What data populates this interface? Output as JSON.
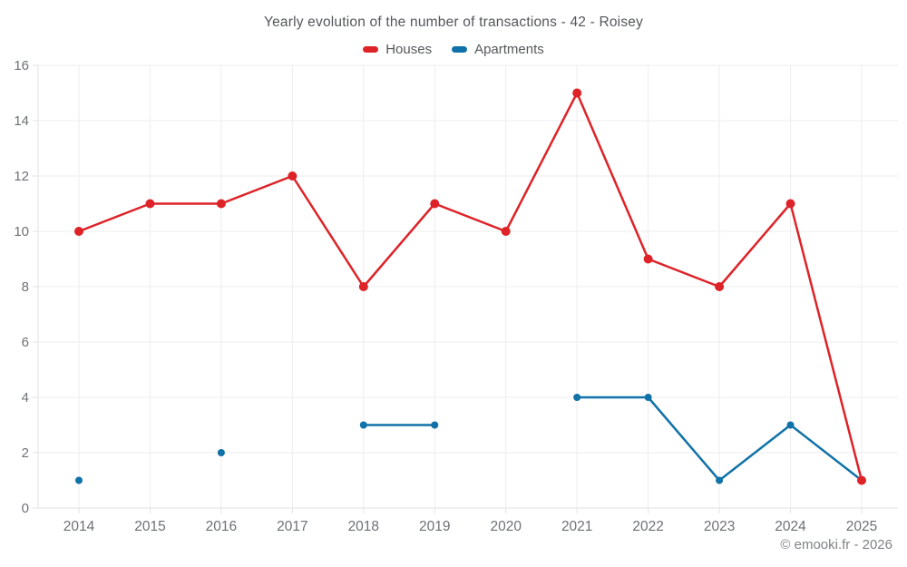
{
  "chart": {
    "title": "Yearly evolution of the number of transactions - 42 - Roisey"
  },
  "legend": [
    {
      "label": "Houses",
      "color": "#dd2328"
    },
    {
      "label": "Apartments",
      "color": "#1072a8"
    }
  ],
  "footer": {
    "copyright": "© emooki.fr - 2026"
  },
  "style": {
    "background": "#ffffff",
    "grid_color": "#ededed",
    "axis_line_color": "#e2e2e2",
    "tick_label_color": "#6d7175",
    "title_color": "#54575b",
    "footer_color": "#7f8285"
  },
  "chart_data": {
    "type": "line",
    "title": "Yearly evolution of the number of transactions - 42 - Roisey",
    "xlabel": "",
    "ylabel": "",
    "categories": [
      "2014",
      "2015",
      "2016",
      "2017",
      "2018",
      "2019",
      "2020",
      "2021",
      "2022",
      "2023",
      "2024",
      "2025"
    ],
    "series": [
      {
        "name": "Houses",
        "color": "#dd2328",
        "marker_radius": 5,
        "line_width": 2.5,
        "values": [
          10,
          11,
          11,
          12,
          8,
          11,
          10,
          15,
          9,
          8,
          11,
          1
        ]
      },
      {
        "name": "Apartments",
        "color": "#1072a8",
        "marker_radius": 4,
        "line_width": 2.5,
        "values": [
          1,
          null,
          2,
          null,
          3,
          3,
          null,
          4,
          4,
          1,
          3,
          1
        ]
      }
    ],
    "ylim": [
      0,
      16
    ],
    "yticks": [
      0,
      2,
      4,
      6,
      8,
      10,
      12,
      14,
      16
    ],
    "grid": true,
    "legend_position": "top"
  }
}
